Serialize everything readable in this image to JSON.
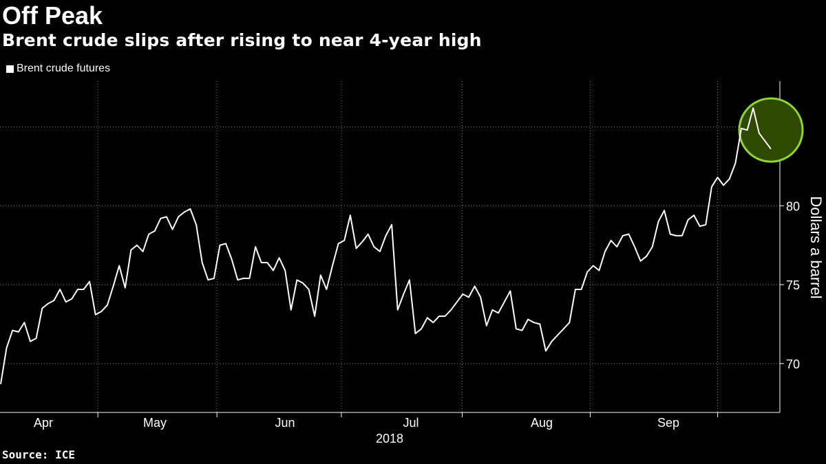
{
  "header": {
    "title": "Off Peak",
    "subtitle": "Brent crude slips after rising to near 4-year high"
  },
  "legend": {
    "label": "Brent crude futures"
  },
  "footer": {
    "source": "Source: ICE"
  },
  "colors": {
    "background": "#000000",
    "line": "#ffffff",
    "highlight_fill": "#2e4a00",
    "highlight_stroke": "#8fd630"
  },
  "chart_data": {
    "type": "line",
    "title": "Off Peak",
    "subtitle": "Brent crude slips after rising to near 4-year high",
    "ylabel": "Dollars a barrel",
    "xlabel": "2018",
    "ylim": [
      66.9,
      87.9
    ],
    "yticks": [
      70,
      75,
      80,
      85
    ],
    "x_unit": "trading day index (0 = Mar 29, 2018)",
    "month_ticks": [
      {
        "label": "Apr",
        "x": 2
      },
      {
        "label": "May",
        "x": 23
      },
      {
        "label": "Jun",
        "x": 44
      },
      {
        "label": "Jul",
        "x": 65
      },
      {
        "label": "Aug",
        "x": 86
      },
      {
        "label": "Sep",
        "x": 108
      }
    ],
    "year_label": "2018",
    "series": [
      {
        "name": "Brent crude futures",
        "values": [
          68.7,
          71.0,
          72.1,
          72.0,
          72.6,
          71.4,
          71.6,
          73.5,
          73.8,
          74.0,
          74.7,
          73.9,
          74.1,
          74.7,
          74.7,
          75.2,
          73.1,
          73.3,
          73.7,
          74.9,
          76.2,
          74.8,
          77.2,
          77.5,
          77.1,
          78.2,
          78.4,
          79.2,
          79.3,
          78.5,
          79.3,
          79.6,
          79.8,
          78.8,
          76.4,
          75.3,
          75.4,
          77.5,
          77.6,
          76.6,
          75.3,
          75.4,
          75.4,
          77.4,
          76.4,
          76.4,
          75.9,
          76.7,
          75.9,
          73.4,
          75.3,
          75.1,
          74.7,
          73.0,
          75.6,
          74.7,
          76.2,
          77.6,
          77.8,
          79.4,
          77.3,
          77.7,
          78.2,
          77.4,
          77.1,
          78.1,
          78.8,
          73.4,
          74.4,
          75.3,
          71.9,
          72.2,
          72.9,
          72.6,
          73.0,
          73.0,
          73.4,
          73.9,
          74.4,
          74.2,
          74.9,
          74.2,
          72.4,
          73.4,
          73.2,
          73.9,
          74.6,
          72.2,
          72.1,
          72.8,
          72.6,
          72.5,
          70.8,
          71.4,
          71.8,
          72.2,
          72.6,
          74.7,
          74.7,
          75.8,
          76.2,
          75.9,
          77.1,
          77.8,
          77.4,
          78.1,
          78.2,
          77.4,
          76.5,
          76.8,
          77.4,
          79.0,
          79.7,
          78.2,
          78.1,
          78.1,
          79.1,
          79.4,
          78.7,
          78.8,
          81.2,
          81.8,
          81.3,
          81.7,
          82.7,
          84.9,
          84.8,
          86.2,
          84.6,
          84.1,
          83.6
        ]
      }
    ],
    "highlight": {
      "shape": "circle",
      "x": 130,
      "y": 84.8,
      "note": "circled recent peak"
    }
  }
}
